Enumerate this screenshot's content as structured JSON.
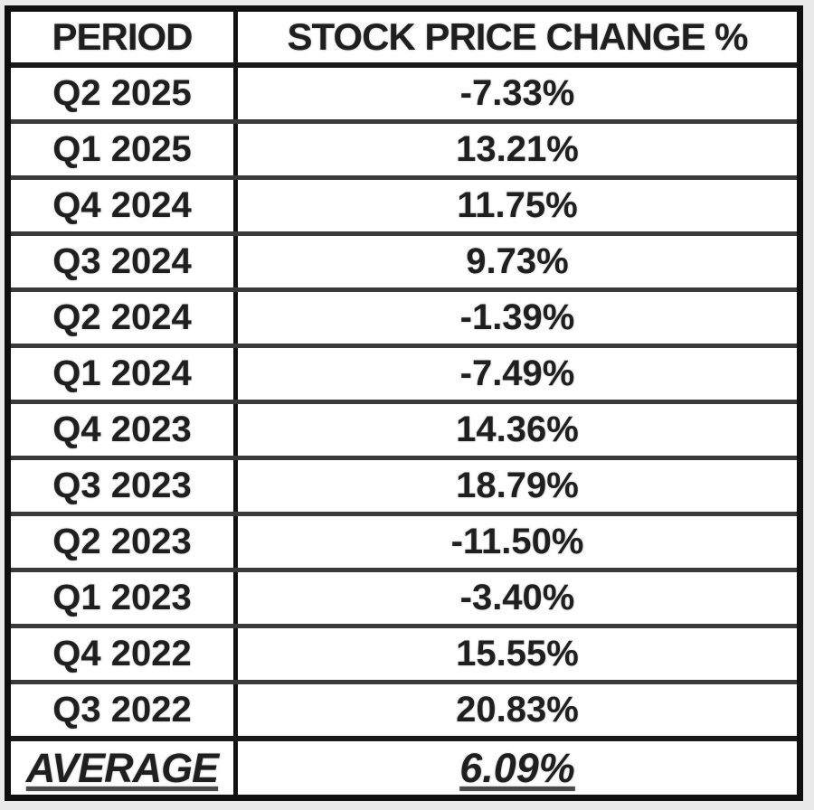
{
  "table": {
    "headers": {
      "period": "PERIOD",
      "change": "STOCK PRICE CHANGE %"
    },
    "rows": [
      {
        "period": "Q2 2025",
        "change": "-7.33%"
      },
      {
        "period": "Q1 2025",
        "change": "13.21%"
      },
      {
        "period": "Q4 2024",
        "change": "11.75%"
      },
      {
        "period": "Q3 2024",
        "change": "9.73%"
      },
      {
        "period": "Q2 2024",
        "change": "-1.39%"
      },
      {
        "period": "Q1 2024",
        "change": "-7.49%"
      },
      {
        "period": "Q4 2023",
        "change": "14.36%"
      },
      {
        "period": "Q3 2023",
        "change": "18.79%"
      },
      {
        "period": "Q2 2023",
        "change": "-11.50%"
      },
      {
        "period": "Q1 2023",
        "change": "-3.40%"
      },
      {
        "period": "Q4 2022",
        "change": "15.55%"
      },
      {
        "period": "Q3 2022",
        "change": "20.83%"
      }
    ],
    "footer": {
      "label": "AVERAGE",
      "value": "6.09%"
    }
  },
  "chart_data": {
    "type": "table",
    "title": "STOCK PRICE CHANGE %",
    "columns": [
      "PERIOD",
      "STOCK PRICE CHANGE %"
    ],
    "rows": [
      [
        "Q2 2025",
        -7.33
      ],
      [
        "Q1 2025",
        13.21
      ],
      [
        "Q4 2024",
        11.75
      ],
      [
        "Q3 2024",
        9.73
      ],
      [
        "Q2 2024",
        -1.39
      ],
      [
        "Q1 2024",
        -7.49
      ],
      [
        "Q4 2023",
        14.36
      ],
      [
        "Q3 2023",
        18.79
      ],
      [
        "Q2 2023",
        -11.5
      ],
      [
        "Q1 2023",
        -3.4
      ],
      [
        "Q4 2022",
        15.55
      ],
      [
        "Q3 2022",
        20.83
      ]
    ],
    "footer": [
      "AVERAGE",
      6.09
    ],
    "value_unit": "%"
  },
  "colors": {
    "page_background": "#e9e9e9",
    "cell_background": "#ffffff",
    "outer_border": "#0f0f0f",
    "row_divider": "#3a3a3a",
    "text": "#1f1f1f"
  }
}
